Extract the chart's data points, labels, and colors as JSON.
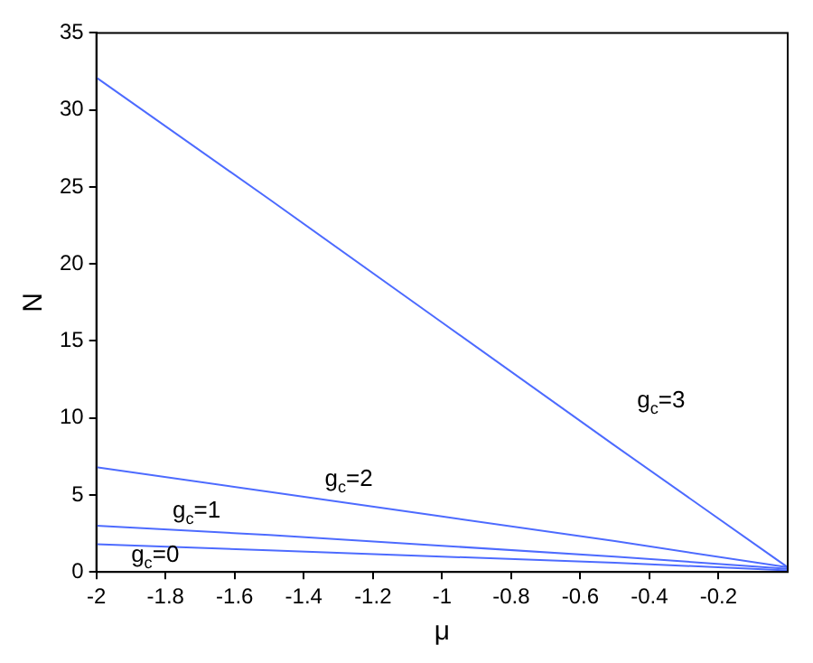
{
  "chart_data": {
    "type": "line",
    "xlabel": "μ",
    "ylabel": "N",
    "x": [
      -2,
      -1.5,
      -1,
      -0.5,
      0
    ],
    "series": [
      {
        "name": "g$_{c}$=3",
        "color": "#4d6bff",
        "values": [
          32.1,
          24.2,
          16.2,
          8.2,
          0.3
        ]
      },
      {
        "name": "g$_{c}$=2",
        "color": "#4d6bff",
        "values": [
          6.8,
          5.2,
          3.6,
          2.0,
          0.3
        ]
      },
      {
        "name": "g$_{c}$=1",
        "color": "#4d6bff",
        "values": [
          3.0,
          2.4,
          1.7,
          1.0,
          0.2
        ]
      },
      {
        "name": "g$_{c}$=0",
        "color": "#4d6bff",
        "values": [
          1.8,
          1.4,
          1.0,
          0.6,
          0.1
        ]
      }
    ],
    "xlim": [
      -2,
      0
    ],
    "xticks": [
      -2,
      -1.8,
      -1.6,
      -1.4,
      -1.2,
      -1,
      -0.8,
      -0.6,
      -0.4,
      -0.2
    ],
    "ylim": [
      0,
      35
    ],
    "yticks": [
      0,
      5,
      10,
      15,
      20,
      25,
      30,
      35
    ],
    "grid": false,
    "legend": false,
    "marker": "none",
    "line_style": "solid"
  }
}
